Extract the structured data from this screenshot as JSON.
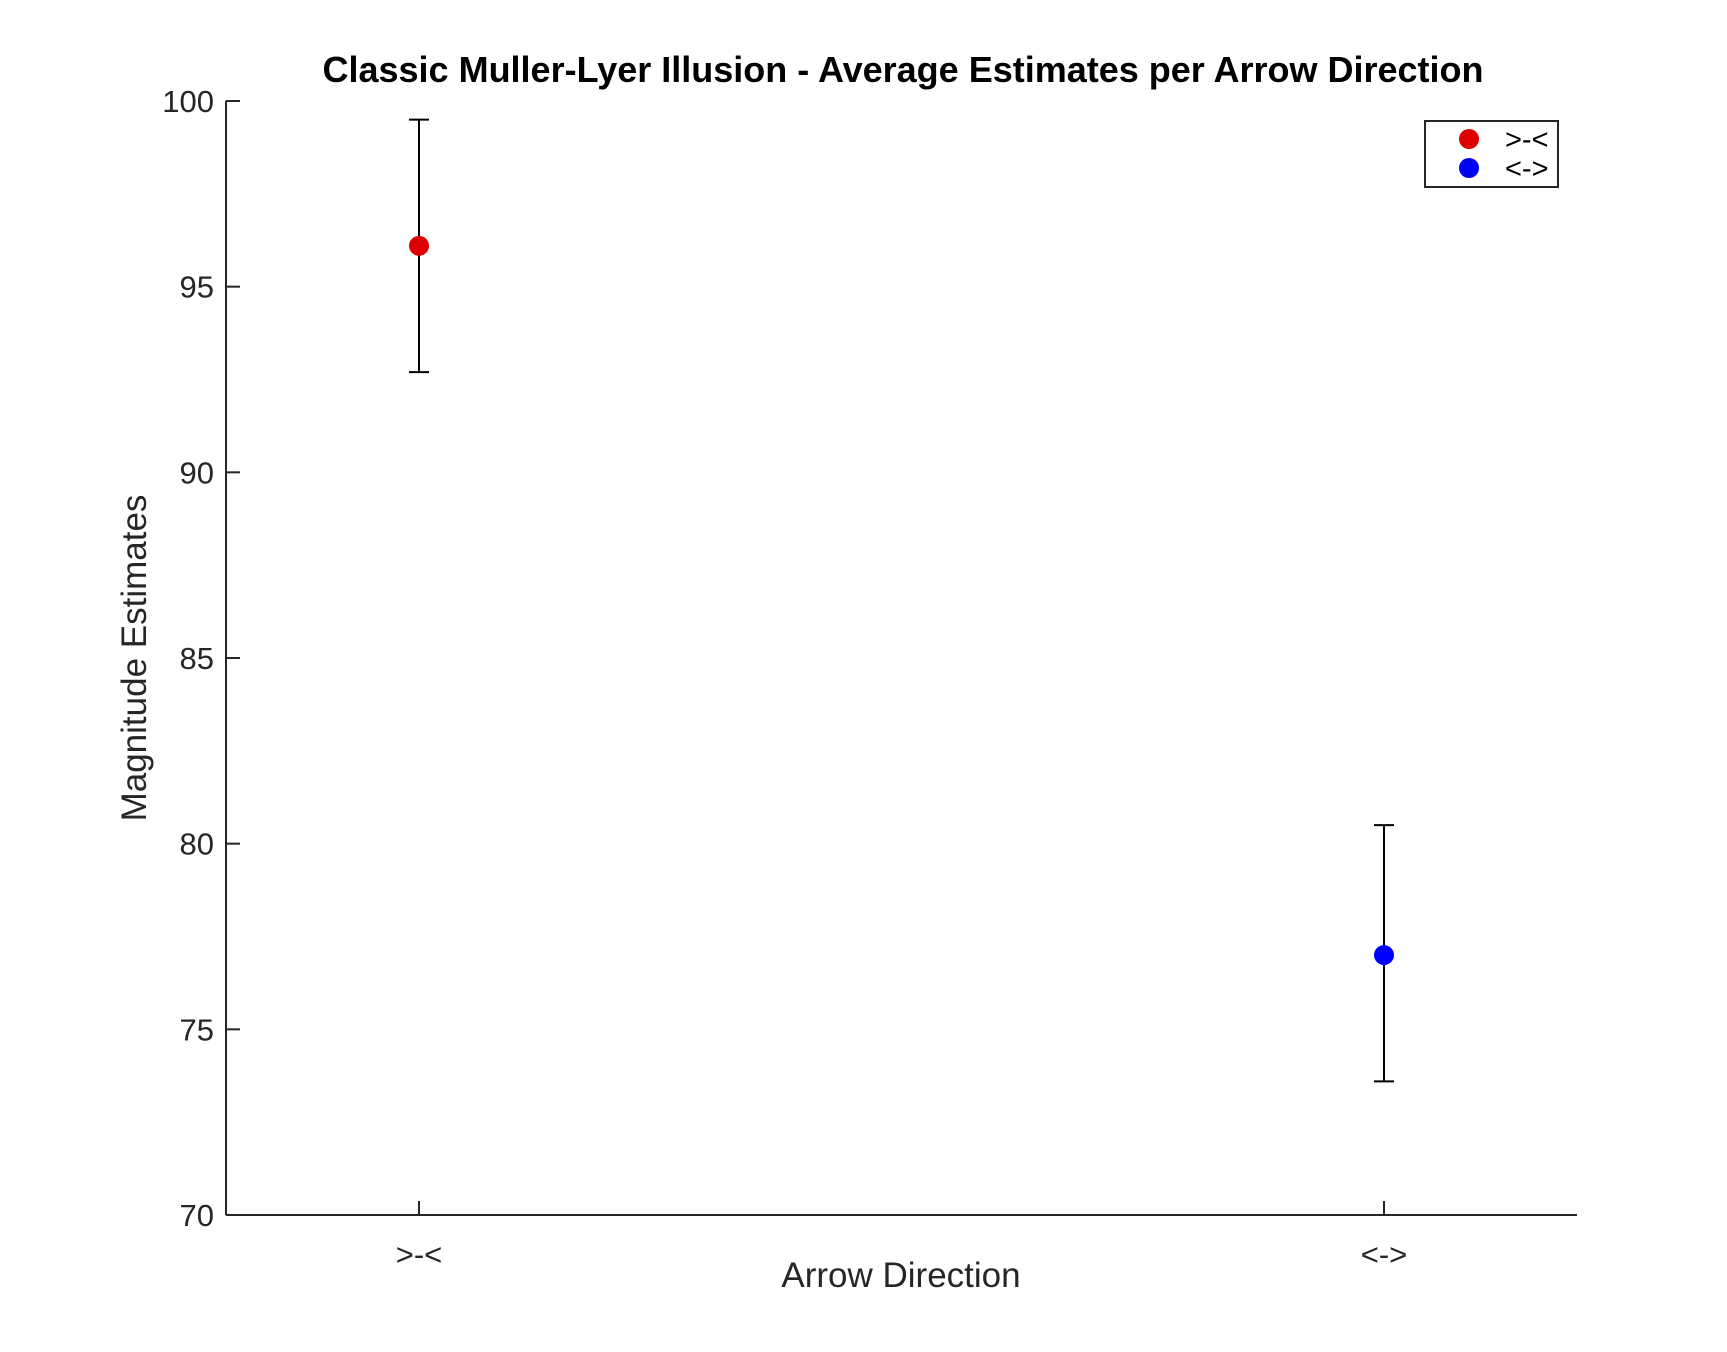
{
  "chart_data": {
    "type": "scatter",
    "title": "Classic Muller-Lyer Illusion - Average Estimates per Arrow Direction",
    "xlabel": "Arrow Direction",
    "ylabel": "Magnitude Estimates",
    "categories": [
      ">-<",
      "<->"
    ],
    "ylim": [
      70,
      100
    ],
    "yticks": [
      "70",
      "75",
      "80",
      "85",
      "90",
      "95",
      "100"
    ],
    "grid": false,
    "legend_position": "top-right",
    "series": [
      {
        "name": ">-<",
        "category": ">-<",
        "value": 96.1,
        "error_low": 92.7,
        "error_high": 99.5,
        "color": "#dd0000"
      },
      {
        "name": "<->",
        "category": "<->",
        "value": 77.0,
        "error_low": 73.6,
        "error_high": 80.5,
        "color": "#0000ff"
      }
    ]
  }
}
